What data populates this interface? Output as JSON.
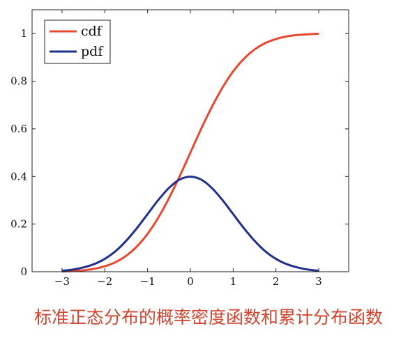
{
  "caption": "标准正态分布的概率密度函数和累计分布函数",
  "chart_data": {
    "type": "line",
    "title": "",
    "xlabel": "",
    "ylabel": "",
    "xlim": [
      -3.7,
      3.7
    ],
    "ylim": [
      0,
      1.1
    ],
    "x_ticks": [
      -3,
      -2,
      -1,
      0,
      1,
      2,
      3
    ],
    "x_tick_labels": [
      "−3",
      "−2",
      "−1",
      "0",
      "1",
      "2",
      "3"
    ],
    "y_ticks": [
      0,
      0.2,
      0.4,
      0.6,
      0.8,
      1
    ],
    "y_tick_labels": [
      "0",
      "0.2",
      "0.4",
      "0.6",
      "0.8",
      "1"
    ],
    "grid": false,
    "legend_position": "top-left",
    "series": [
      {
        "name": "cdf",
        "color": "#e8472f",
        "x": [
          -3,
          -2.75,
          -2.5,
          -2.25,
          -2,
          -1.75,
          -1.5,
          -1.25,
          -1,
          -0.75,
          -0.5,
          -0.25,
          0,
          0.25,
          0.5,
          0.75,
          1,
          1.25,
          1.5,
          1.75,
          2,
          2.25,
          2.5,
          2.75,
          3
        ],
        "y": [
          0.001,
          0.003,
          0.006,
          0.012,
          0.023,
          0.04,
          0.067,
          0.106,
          0.159,
          0.227,
          0.309,
          0.401,
          0.5,
          0.599,
          0.691,
          0.773,
          0.841,
          0.894,
          0.933,
          0.96,
          0.977,
          0.988,
          0.994,
          0.997,
          0.999
        ]
      },
      {
        "name": "pdf",
        "color": "#1f2f8c",
        "x": [
          -3,
          -2.75,
          -2.5,
          -2.25,
          -2,
          -1.75,
          -1.5,
          -1.25,
          -1,
          -0.75,
          -0.5,
          -0.25,
          0,
          0.25,
          0.5,
          0.75,
          1,
          1.25,
          1.5,
          1.75,
          2,
          2.25,
          2.5,
          2.75,
          3
        ],
        "y": [
          0.004,
          0.009,
          0.018,
          0.032,
          0.054,
          0.086,
          0.13,
          0.183,
          0.242,
          0.301,
          0.352,
          0.387,
          0.399,
          0.387,
          0.352,
          0.301,
          0.242,
          0.183,
          0.13,
          0.086,
          0.054,
          0.032,
          0.018,
          0.009,
          0.004
        ]
      }
    ]
  }
}
